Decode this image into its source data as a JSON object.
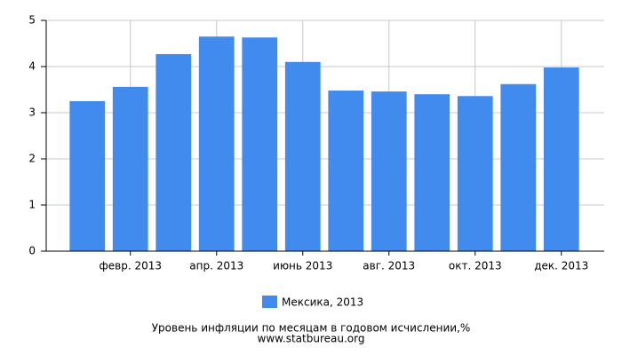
{
  "chart_data": {
    "type": "bar",
    "title": "Уровень инфляции по месяцам в годовом исчислении,%",
    "source": "www.statbureau.org",
    "categories": [
      null,
      "февр. 2013",
      null,
      "апр. 2013",
      null,
      "июнь 2013",
      null,
      "авг. 2013",
      null,
      "окт. 2013",
      null,
      "дек. 2013"
    ],
    "series": [
      {
        "name": "Мексика, 2013",
        "color": "#428bee",
        "values": [
          3.25,
          3.56,
          4.27,
          4.65,
          4.63,
          4.1,
          3.48,
          3.46,
          3.4,
          3.36,
          3.62,
          3.98
        ]
      }
    ],
    "ylim": [
      0,
      5
    ],
    "yticks": [
      0,
      1,
      2,
      3,
      4,
      5
    ],
    "grid": true
  }
}
